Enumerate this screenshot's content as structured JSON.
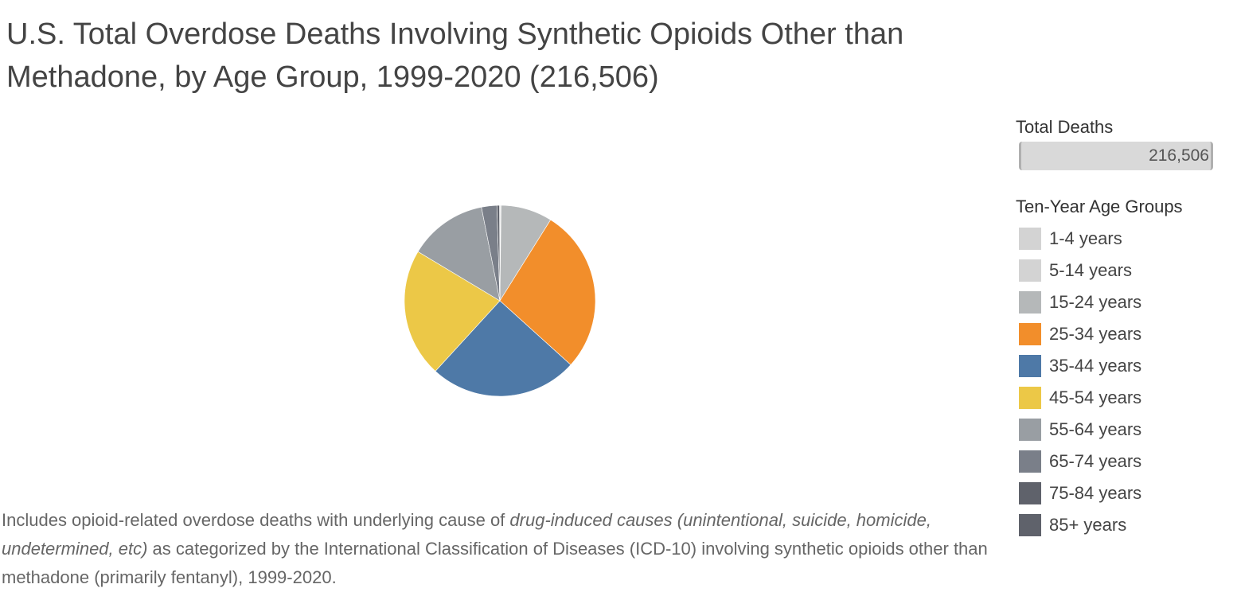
{
  "title": "U.S. Total Overdose Deaths Involving Synthetic Opioids Other than Methadone, by Age Group, 1999-2020 (216,506)",
  "legend": {
    "total_heading": "Total Deaths",
    "total_value": "216,506",
    "total_fraction": 1.0,
    "age_heading": "Ten-Year Age Groups"
  },
  "colors": {
    "1-4 years": "#d3d3d3",
    "5-14 years": "#d3d3d3",
    "15-24 years": "#b5b8b9",
    "25-34 years": "#f28e2b",
    "35-44 years": "#4e79a7",
    "45-54 years": "#ecc847",
    "55-64 years": "#999ea3",
    "65-74 years": "#7a7f89",
    "75-84 years": "#5f626b",
    "85+ years": "#5f626b"
  },
  "footnote": {
    "prefix": "Includes opioid-related overdose deaths with underlying cause of ",
    "italic": "drug-induced causes (unintentional, suicide, homicide, undetermined, etc)",
    "suffix": "  as categorized by the International Classification of Diseases (ICD-10) involving synthetic opioids other than methadone (primarily fentanyl), 1999-2020."
  },
  "chart_data": {
    "type": "pie",
    "categories": [
      "1-4 years",
      "5-14 years",
      "15-24 years",
      "25-34 years",
      "35-44 years",
      "45-54 years",
      "55-64 years",
      "65-74 years",
      "75-84 years",
      "85+ years"
    ],
    "values": [
      0.05,
      0.15,
      8.7,
      27.8,
      25.1,
      21.8,
      13.3,
      2.6,
      0.45,
      0.05
    ],
    "unit": "percent of total deaths (estimated)",
    "total": 216506,
    "legend_position": "right"
  }
}
